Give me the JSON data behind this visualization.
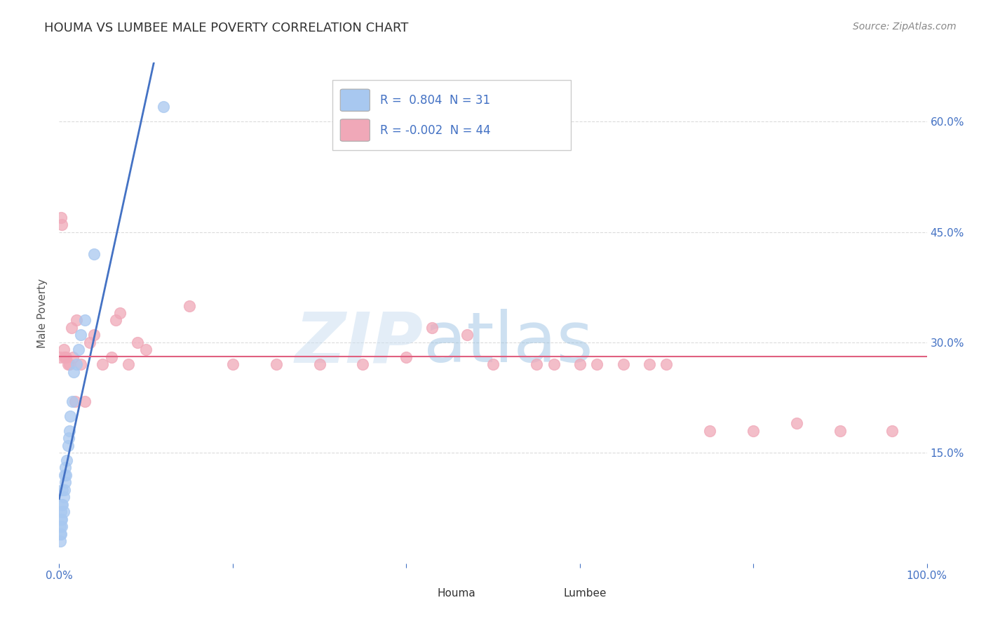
{
  "title": "HOUMA VS LUMBEE MALE POVERTY CORRELATION CHART",
  "source_text": "Source: ZipAtlas.com",
  "ylabel": "Male Poverty",
  "xlim": [
    0.0,
    1.0
  ],
  "ylim": [
    0.0,
    0.68
  ],
  "xtick_vals": [
    0.0,
    0.2,
    0.4,
    0.6,
    0.8,
    1.0
  ],
  "xtick_labels": [
    "0.0%",
    "",
    "",
    "",
    "",
    "100.0%"
  ],
  "ytick_vals": [
    0.15,
    0.3,
    0.45,
    0.6
  ],
  "ytick_labels": [
    "15.0%",
    "30.0%",
    "45.0%",
    "60.0%"
  ],
  "houma_R": 0.804,
  "houma_N": 31,
  "lumbee_R": -0.002,
  "lumbee_N": 44,
  "houma_color": "#a8c8f0",
  "lumbee_color": "#f0a8b8",
  "houma_line_color": "#4472c4",
  "lumbee_line_color": "#e06080",
  "houma_x": [
    0.001,
    0.001,
    0.001,
    0.002,
    0.002,
    0.002,
    0.003,
    0.003,
    0.003,
    0.004,
    0.004,
    0.005,
    0.005,
    0.006,
    0.006,
    0.007,
    0.007,
    0.008,
    0.009,
    0.01,
    0.011,
    0.012,
    0.013,
    0.015,
    0.017,
    0.02,
    0.022,
    0.025,
    0.03,
    0.04,
    0.12
  ],
  "houma_y": [
    0.03,
    0.04,
    0.05,
    0.04,
    0.06,
    0.07,
    0.05,
    0.06,
    0.08,
    0.08,
    0.1,
    0.07,
    0.09,
    0.1,
    0.12,
    0.11,
    0.13,
    0.12,
    0.14,
    0.16,
    0.17,
    0.18,
    0.2,
    0.22,
    0.26,
    0.27,
    0.29,
    0.31,
    0.33,
    0.42,
    0.62
  ],
  "lumbee_x": [
    0.001,
    0.002,
    0.003,
    0.005,
    0.006,
    0.008,
    0.01,
    0.012,
    0.014,
    0.016,
    0.018,
    0.02,
    0.025,
    0.03,
    0.035,
    0.04,
    0.05,
    0.06,
    0.065,
    0.07,
    0.08,
    0.09,
    0.1,
    0.15,
    0.2,
    0.25,
    0.3,
    0.35,
    0.4,
    0.43,
    0.47,
    0.5,
    0.55,
    0.57,
    0.6,
    0.62,
    0.65,
    0.68,
    0.7,
    0.75,
    0.8,
    0.85,
    0.9,
    0.96
  ],
  "lumbee_y": [
    0.28,
    0.47,
    0.46,
    0.29,
    0.28,
    0.28,
    0.27,
    0.27,
    0.32,
    0.28,
    0.22,
    0.33,
    0.27,
    0.22,
    0.3,
    0.31,
    0.27,
    0.28,
    0.33,
    0.34,
    0.27,
    0.3,
    0.29,
    0.35,
    0.27,
    0.27,
    0.27,
    0.27,
    0.28,
    0.32,
    0.31,
    0.27,
    0.27,
    0.27,
    0.27,
    0.27,
    0.27,
    0.27,
    0.27,
    0.18,
    0.18,
    0.19,
    0.18,
    0.18
  ],
  "watermark_zip": "ZIP",
  "watermark_atlas": "atlas",
  "background_color": "#ffffff",
  "grid_color": "#cccccc",
  "tick_color": "#4472c4",
  "title_fontsize": 13,
  "axis_label_fontsize": 11,
  "tick_fontsize": 11
}
